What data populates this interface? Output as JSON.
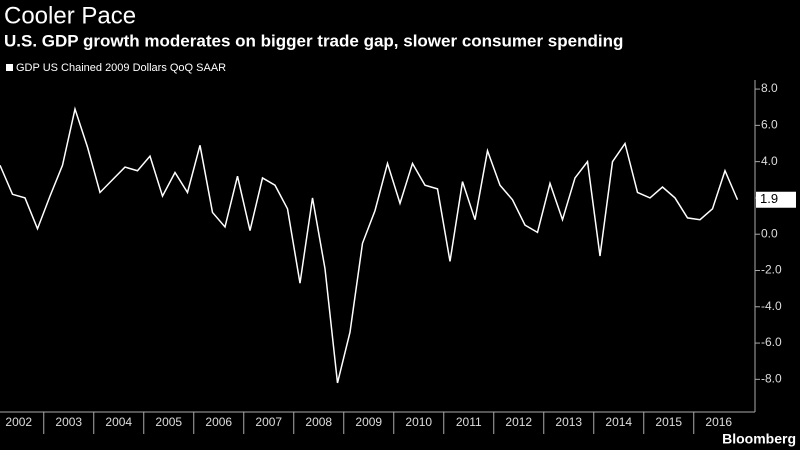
{
  "chart_data": {
    "type": "line",
    "title": "Cooler Pace",
    "subtitle": "U.S. GDP growth moderates on bigger trade gap, slower consumer spending",
    "source": "Bloomberg",
    "categories": [
      "2002",
      null,
      null,
      null,
      "2003",
      null,
      null,
      null,
      "2004",
      null,
      null,
      null,
      "2005",
      null,
      null,
      null,
      "2006",
      null,
      null,
      null,
      "2007",
      null,
      null,
      null,
      "2008",
      null,
      null,
      null,
      "2009",
      null,
      null,
      null,
      "2010",
      null,
      null,
      null,
      "2011",
      null,
      null,
      null,
      "2012",
      null,
      null,
      null,
      "2013",
      null,
      null,
      null,
      "2014",
      null,
      null,
      null,
      "2015",
      null,
      null,
      null,
      "2016",
      null,
      null,
      null
    ],
    "series": [
      {
        "name": "GDP US Chained 2009 Dollars QoQ SAAR",
        "color": "#ffffff",
        "values": [
          3.8,
          2.2,
          2.0,
          0.3,
          2.1,
          3.8,
          6.9,
          4.8,
          2.3,
          3.0,
          3.7,
          3.5,
          4.3,
          2.1,
          3.4,
          2.3,
          4.9,
          1.2,
          0.4,
          3.2,
          0.2,
          3.1,
          2.7,
          1.4,
          -2.7,
          2.0,
          -1.9,
          -8.2,
          -5.4,
          -0.5,
          1.3,
          3.9,
          1.7,
          3.9,
          2.7,
          2.5,
          -1.5,
          2.9,
          0.8,
          4.6,
          2.7,
          1.9,
          0.5,
          0.1,
          2.8,
          0.8,
          3.1,
          4.0,
          -1.2,
          4.0,
          5.0,
          2.3,
          2.0,
          2.6,
          2.0,
          0.9,
          0.8,
          1.4,
          3.5,
          1.9
        ]
      }
    ],
    "ylim": [
      -9.8,
      8.5
    ],
    "yticks": [
      {
        "value": 8,
        "label": "8.0"
      },
      {
        "value": 6,
        "label": "6.0"
      },
      {
        "value": 4,
        "label": "4.0"
      },
      {
        "value": 2,
        "label": "2.0"
      },
      {
        "value": 0,
        "label": "0.0"
      },
      {
        "value": -2,
        "label": "-2.0"
      },
      {
        "value": -4,
        "label": "-4.0"
      },
      {
        "value": -6,
        "label": "-6.0"
      },
      {
        "value": -8,
        "label": "-8.0"
      }
    ],
    "grid": false
  }
}
